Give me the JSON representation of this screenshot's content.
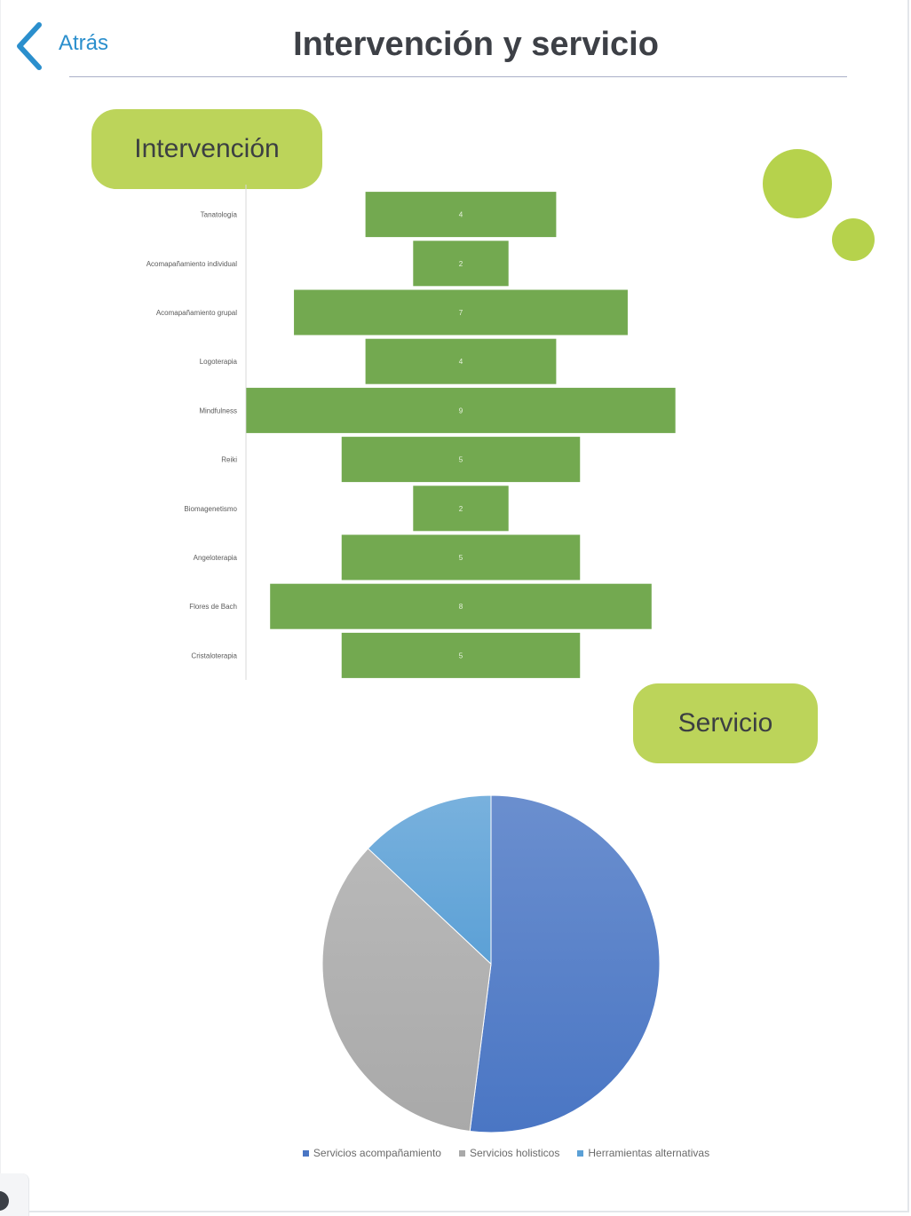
{
  "header": {
    "back_label": "Atrás",
    "title": "Intervención y servicio"
  },
  "sections": {
    "intervencion_label": "Intervención",
    "servicio_label": "Servicio"
  },
  "colors": {
    "accent_green": "#bcd45a",
    "bar_green": "#73a950",
    "link_blue": "#2b8fcd"
  },
  "icons": {
    "back": "chevron-left-icon"
  },
  "chart_data": [
    {
      "type": "bar",
      "orientation": "horizontal",
      "layout": "centered",
      "categories": [
        "Tanatología",
        "Acomapañamiento individual",
        "Acomapañamiento grupal",
        "Logoterapia",
        "Mindfulness",
        "Reiki",
        "Biomagenetismo",
        "Angeloterapia",
        "Flores de Bach",
        "Cristaloterapia"
      ],
      "values": [
        4,
        2,
        7,
        4,
        9,
        5,
        2,
        5,
        8,
        5
      ],
      "data_labels": true,
      "grid": false,
      "legend": false
    },
    {
      "type": "pie",
      "labels": [
        "Servicios acompañamiento",
        "Servicios holisticos",
        "Herramientas alternativas"
      ],
      "values": [
        52,
        35,
        13
      ],
      "colors": [
        "#4a76c4",
        "#a9a9a9",
        "#5ba0d6"
      ],
      "legend_position": "bottom"
    }
  ]
}
